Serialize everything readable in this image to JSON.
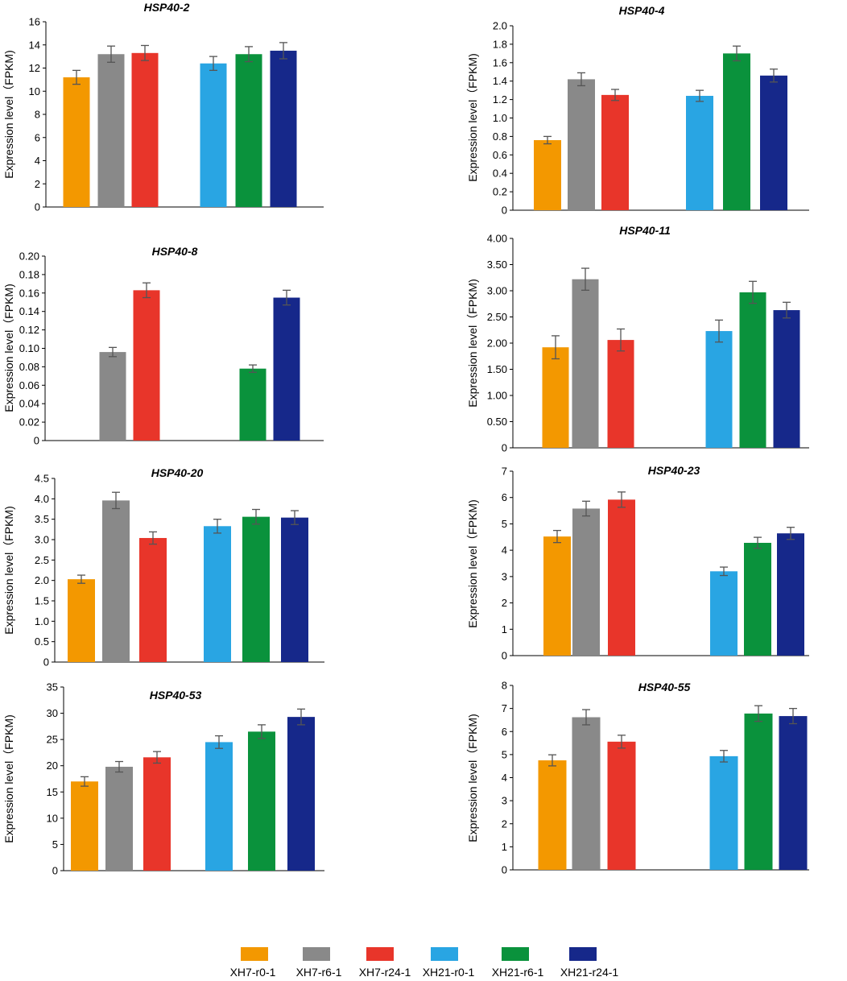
{
  "legend": [
    {
      "label": "XH7-r0-1",
      "color": "#f39800"
    },
    {
      "label": "XH7-r6-1",
      "color": "#898989"
    },
    {
      "label": "XH7-r24-1",
      "color": "#e8352a"
    },
    {
      "label": "XH21-r0-1",
      "color": "#29a5e3"
    },
    {
      "label": "XH21-r6-1",
      "color": "#0a923c"
    },
    {
      "label": "XH21-r24-1",
      "color": "#16288a"
    }
  ],
  "chart_data": [
    {
      "type": "bar",
      "title": "HSP40-2",
      "ylabel": "Expression level（FPKM)",
      "ylim": [
        0,
        16
      ],
      "yticks": [
        "0",
        "2",
        "4",
        "6",
        "8",
        "10",
        "12",
        "14",
        "16"
      ],
      "xlabel": "",
      "categories": [
        "XH7-r0-1",
        "XH7-r6-1",
        "XH7-r24-1",
        "XH21-r0-1",
        "XH21-r6-1",
        "XH21-r24-1"
      ],
      "values": [
        11.2,
        13.2,
        13.3,
        12.4,
        13.2,
        13.5
      ],
      "errors": [
        0.6,
        0.7,
        0.65,
        0.6,
        0.65,
        0.7
      ]
    },
    {
      "type": "bar",
      "title": "HSP40-4",
      "ylabel": "Expression level（FPKM)",
      "ylim": [
        0,
        2.0
      ],
      "yticks": [
        "0",
        "0.2",
        "0.4",
        "0.6",
        "0.8",
        "1.0",
        "1.2",
        "1.4",
        "1.6",
        "1.8",
        "2.0"
      ],
      "xlabel": "",
      "categories": [
        "XH7-r0-1",
        "XH7-r6-1",
        "XH7-r24-1",
        "XH21-r0-1",
        "XH21-r6-1",
        "XH21-r24-1"
      ],
      "values": [
        0.76,
        1.42,
        1.25,
        1.24,
        1.7,
        1.46
      ],
      "errors": [
        0.04,
        0.07,
        0.06,
        0.06,
        0.08,
        0.07
      ]
    },
    {
      "type": "bar",
      "title": "HSP40-8",
      "ylabel": "Expression level（FPKM)",
      "ylim": [
        0,
        0.2
      ],
      "yticks": [
        "0",
        "0.02",
        "0.04",
        "0.06",
        "0.08",
        "0.10",
        "0.12",
        "0.14",
        "0.16",
        "0.18",
        "0.20"
      ],
      "xlabel": "",
      "categories": [
        "XH7-r0-1",
        "XH7-r6-1",
        "XH7-r24-1",
        "XH21-r0-1",
        "XH21-r6-1",
        "XH21-r24-1"
      ],
      "values": [
        0,
        0.096,
        0.163,
        0,
        0.078,
        0.155
      ],
      "errors": [
        0,
        0.005,
        0.008,
        0,
        0.004,
        0.008
      ]
    },
    {
      "type": "bar",
      "title": "HSP40-11",
      "ylabel": "Expression level（FPKM)",
      "ylim": [
        0,
        4.0
      ],
      "yticks": [
        "0",
        "0.50",
        "1.00",
        "1.50",
        "2.00",
        "2.50",
        "3.00",
        "3.50",
        "4.00"
      ],
      "xlabel": "",
      "categories": [
        "XH7-r0-1",
        "XH7-r6-1",
        "XH7-r24-1",
        "XH21-r0-1",
        "XH21-r6-1",
        "XH21-r24-1"
      ],
      "values": [
        1.92,
        3.22,
        2.06,
        2.23,
        2.97,
        2.63
      ],
      "errors": [
        0.22,
        0.21,
        0.21,
        0.21,
        0.21,
        0.15
      ]
    },
    {
      "type": "bar",
      "title": "HSP40-20",
      "ylabel": "Expression level（FPKM)",
      "ylim": [
        0,
        4.5
      ],
      "yticks": [
        "0",
        "0.5",
        "1.0",
        "1.5",
        "2.0",
        "2.5",
        "3.0",
        "3.5",
        "4.0",
        "4.5"
      ],
      "xlabel": "",
      "categories": [
        "XH7-r0-1",
        "XH7-r6-1",
        "XH7-r24-1",
        "XH21-r0-1",
        "XH21-r6-1",
        "XH21-r24-1"
      ],
      "values": [
        2.03,
        3.96,
        3.04,
        3.33,
        3.56,
        3.54
      ],
      "errors": [
        0.1,
        0.2,
        0.15,
        0.17,
        0.18,
        0.17
      ]
    },
    {
      "type": "bar",
      "title": "HSP40-23",
      "ylabel": "Expression level（FPKM)",
      "ylim": [
        0,
        7
      ],
      "yticks": [
        "0",
        "1",
        "2",
        "3",
        "4",
        "5",
        "6",
        "7"
      ],
      "xlabel": "",
      "categories": [
        "XH7-r0-1",
        "XH7-r6-1",
        "XH7-r24-1",
        "XH21-r0-1",
        "XH21-r6-1",
        "XH21-r24-1"
      ],
      "values": [
        4.52,
        5.58,
        5.92,
        3.2,
        4.28,
        4.64
      ],
      "errors": [
        0.23,
        0.28,
        0.29,
        0.16,
        0.21,
        0.23
      ]
    },
    {
      "type": "bar",
      "title": "HSP40-53",
      "ylabel": "Expression level（FPKM)",
      "ylim": [
        0,
        35
      ],
      "yticks": [
        "0",
        "5",
        "10",
        "15",
        "20",
        "25",
        "30",
        "35"
      ],
      "xlabel": "",
      "categories": [
        "XH7-r0-1",
        "XH7-r6-1",
        "XH7-r24-1",
        "XH21-r0-1",
        "XH21-r6-1",
        "XH21-r24-1"
      ],
      "values": [
        17.0,
        19.8,
        21.6,
        24.5,
        26.5,
        29.3
      ],
      "errors": [
        0.9,
        1.0,
        1.1,
        1.2,
        1.3,
        1.5
      ]
    },
    {
      "type": "bar",
      "title": "HSP40-55",
      "ylabel": "Expression level（FPKM)",
      "ylim": [
        0,
        8
      ],
      "yticks": [
        "0",
        "1",
        "2",
        "3",
        "4",
        "5",
        "6",
        "7",
        "8"
      ],
      "xlabel": "",
      "categories": [
        "XH7-r0-1",
        "XH7-r6-1",
        "XH7-r24-1",
        "XH21-r0-1",
        "XH21-r6-1",
        "XH21-r24-1"
      ],
      "values": [
        4.75,
        6.62,
        5.56,
        4.93,
        6.78,
        6.67
      ],
      "errors": [
        0.24,
        0.33,
        0.28,
        0.25,
        0.34,
        0.33
      ]
    }
  ]
}
